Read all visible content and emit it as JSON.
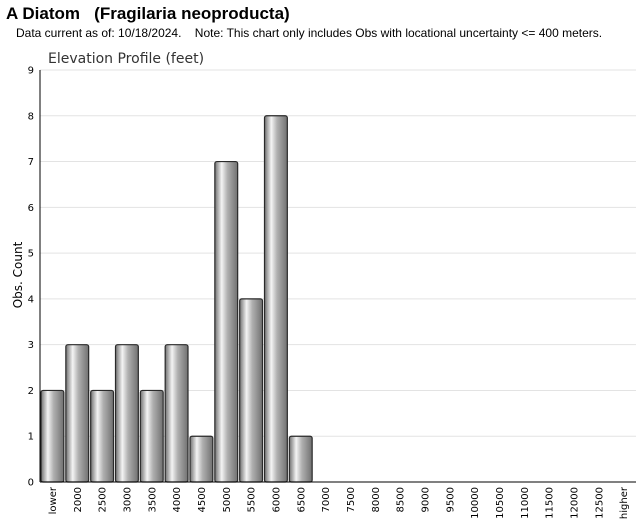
{
  "header": {
    "title": "A Diatom   (Fragilaria neoproducta)",
    "subtitle": "Data current as of: 10/18/2024.    Note: This chart only includes Obs with locational uncertainty <= 400 meters."
  },
  "chart_data": {
    "type": "bar",
    "title": "Elevation Profile (feet)",
    "xlabel": "",
    "ylabel": "Obs. Count",
    "ylim": [
      0,
      9
    ],
    "yticks": [
      0,
      1,
      2,
      3,
      4,
      5,
      6,
      7,
      8,
      9
    ],
    "grid": true,
    "categories": [
      "lower",
      "2000",
      "2500",
      "3000",
      "3500",
      "4000",
      "4500",
      "5000",
      "5500",
      "6000",
      "6500",
      "7000",
      "7500",
      "8000",
      "8500",
      "9000",
      "9500",
      "10000",
      "10500",
      "11000",
      "11500",
      "12000",
      "12500",
      "higher"
    ],
    "values": [
      2,
      3,
      2,
      3,
      2,
      3,
      1,
      7,
      4,
      8,
      1,
      0,
      0,
      0,
      0,
      0,
      0,
      0,
      0,
      0,
      0,
      0,
      0,
      0
    ],
    "colors": {
      "bar_light": "#f4f4f4",
      "bar_mid": "#b0b0b0",
      "bar_dark": "#707070",
      "bar_edge": "#2a2a2a",
      "grid": "#e3e3e3",
      "axis": "#000000"
    }
  }
}
